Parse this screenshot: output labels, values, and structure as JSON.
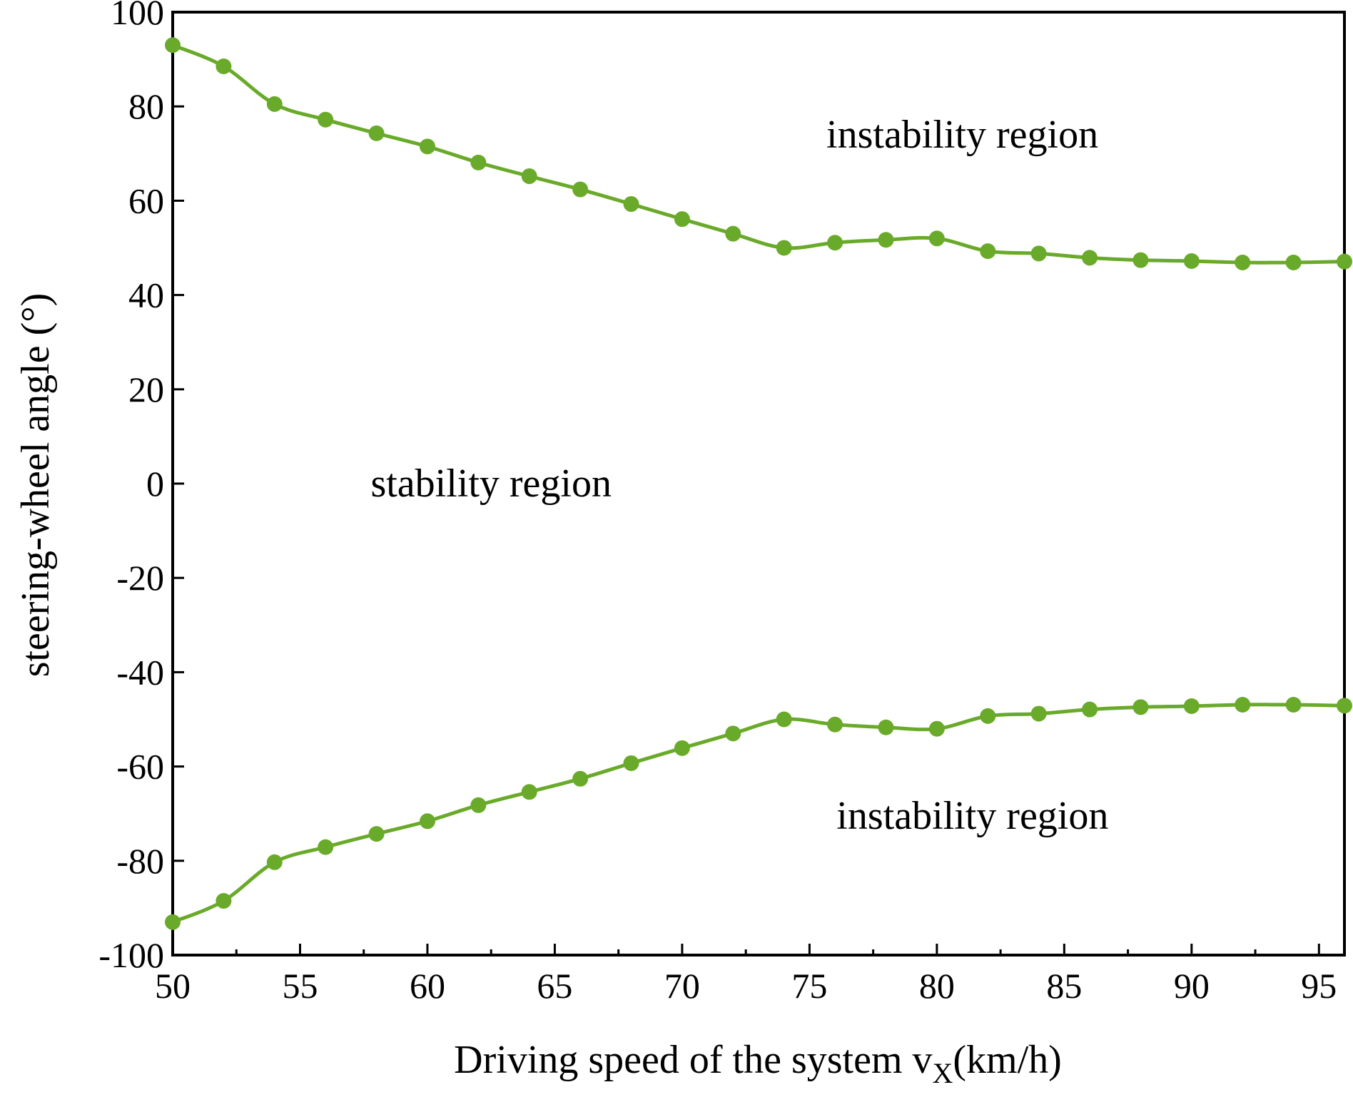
{
  "chart_data": {
    "type": "line",
    "title": "",
    "xlabel": {
      "main": "Driving speed of the system v",
      "subscript": "X",
      "suffix": "(km/h)"
    },
    "ylabel": "steering-wheel angle (°)",
    "xlim": [
      50,
      96
    ],
    "ylim": [
      -100,
      100
    ],
    "xticks": [
      50,
      55,
      60,
      65,
      70,
      75,
      80,
      85,
      90,
      95
    ],
    "yticks": [
      100,
      80,
      60,
      40,
      20,
      0,
      -20,
      -40,
      -60,
      -80,
      -100
    ],
    "xtick_labels": [
      "50",
      "55",
      "60",
      "65",
      "70",
      "75",
      "80",
      "85",
      "90",
      "95"
    ],
    "ytick_labels": [
      "100",
      "80",
      "60",
      "40",
      "20",
      "0",
      "-20",
      "-40",
      "-60",
      "-80",
      "-100"
    ],
    "grid": false,
    "line_color": "#6aaa2a",
    "x": [
      50,
      52,
      54,
      56,
      58,
      60,
      62,
      64,
      66,
      68,
      70,
      72,
      74,
      76,
      78,
      80,
      82,
      84,
      86,
      88,
      90,
      92,
      94,
      96
    ],
    "series": [
      {
        "name": "upper boundary",
        "values": [
          93,
          88.5,
          80.5,
          77.2,
          74.3,
          71.5,
          68.1,
          65.2,
          62.4,
          59.3,
          56.1,
          53.0,
          50.0,
          51.1,
          51.7,
          52.0,
          49.3,
          48.8,
          47.9,
          47.4,
          47.2,
          46.9,
          46.9,
          47.1
        ]
      },
      {
        "name": "lower boundary",
        "values": [
          -93,
          -88.5,
          -80.3,
          -77.1,
          -74.3,
          -71.6,
          -68.2,
          -65.4,
          -62.6,
          -59.3,
          -56.1,
          -53.0,
          -50.0,
          -51.1,
          -51.7,
          -52.0,
          -49.3,
          -48.8,
          -47.9,
          -47.4,
          -47.2,
          -46.9,
          -46.9,
          -47.1
        ]
      }
    ],
    "annotations": [
      {
        "text": "instability region",
        "x": 81,
        "y": 74
      },
      {
        "text": "stability region",
        "x": 62.5,
        "y": 0
      },
      {
        "text": "instability region",
        "x": 81.4,
        "y": -70.5
      }
    ]
  }
}
